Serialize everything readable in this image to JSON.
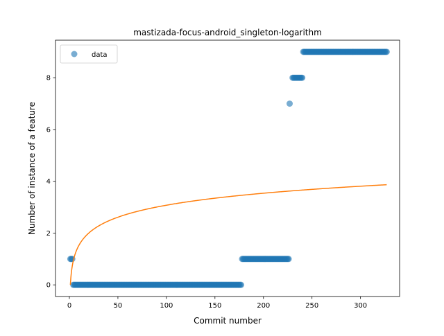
{
  "chart_data": {
    "type": "scatter",
    "title": "mastizada-focus-android_singleton-logarithm",
    "xlabel": "Commit number",
    "ylabel": "Number of instance of a feature",
    "xlim": [
      -14.3,
      340.3
    ],
    "ylim": [
      -0.45,
      9.45
    ],
    "xticks": [
      0,
      50,
      100,
      150,
      200,
      250,
      300
    ],
    "yticks": [
      0,
      2,
      4,
      6,
      8
    ],
    "grid": false,
    "legend": {
      "placement": "top-left",
      "entries": [
        "data"
      ]
    },
    "colors": {
      "data": "#1f77b4",
      "fit": "#ff7f0e"
    },
    "series": [
      {
        "name": "data",
        "kind": "points",
        "segments": [
          {
            "x_start": 1,
            "x_end": 3,
            "y": 1
          },
          {
            "x_start": 4,
            "x_end": 177,
            "y": 0
          },
          {
            "x_start": 178,
            "x_end": 226,
            "y": 1
          },
          {
            "x_start": 227,
            "x_end": 227,
            "y": 7
          },
          {
            "x_start": 230,
            "x_end": 240,
            "y": 8
          },
          {
            "x_start": 241,
            "x_end": 327,
            "y": 9
          }
        ]
      },
      {
        "kind": "line",
        "function": "log",
        "a": 0.668,
        "b": 0.0,
        "x_range": [
          1,
          327
        ]
      }
    ]
  }
}
